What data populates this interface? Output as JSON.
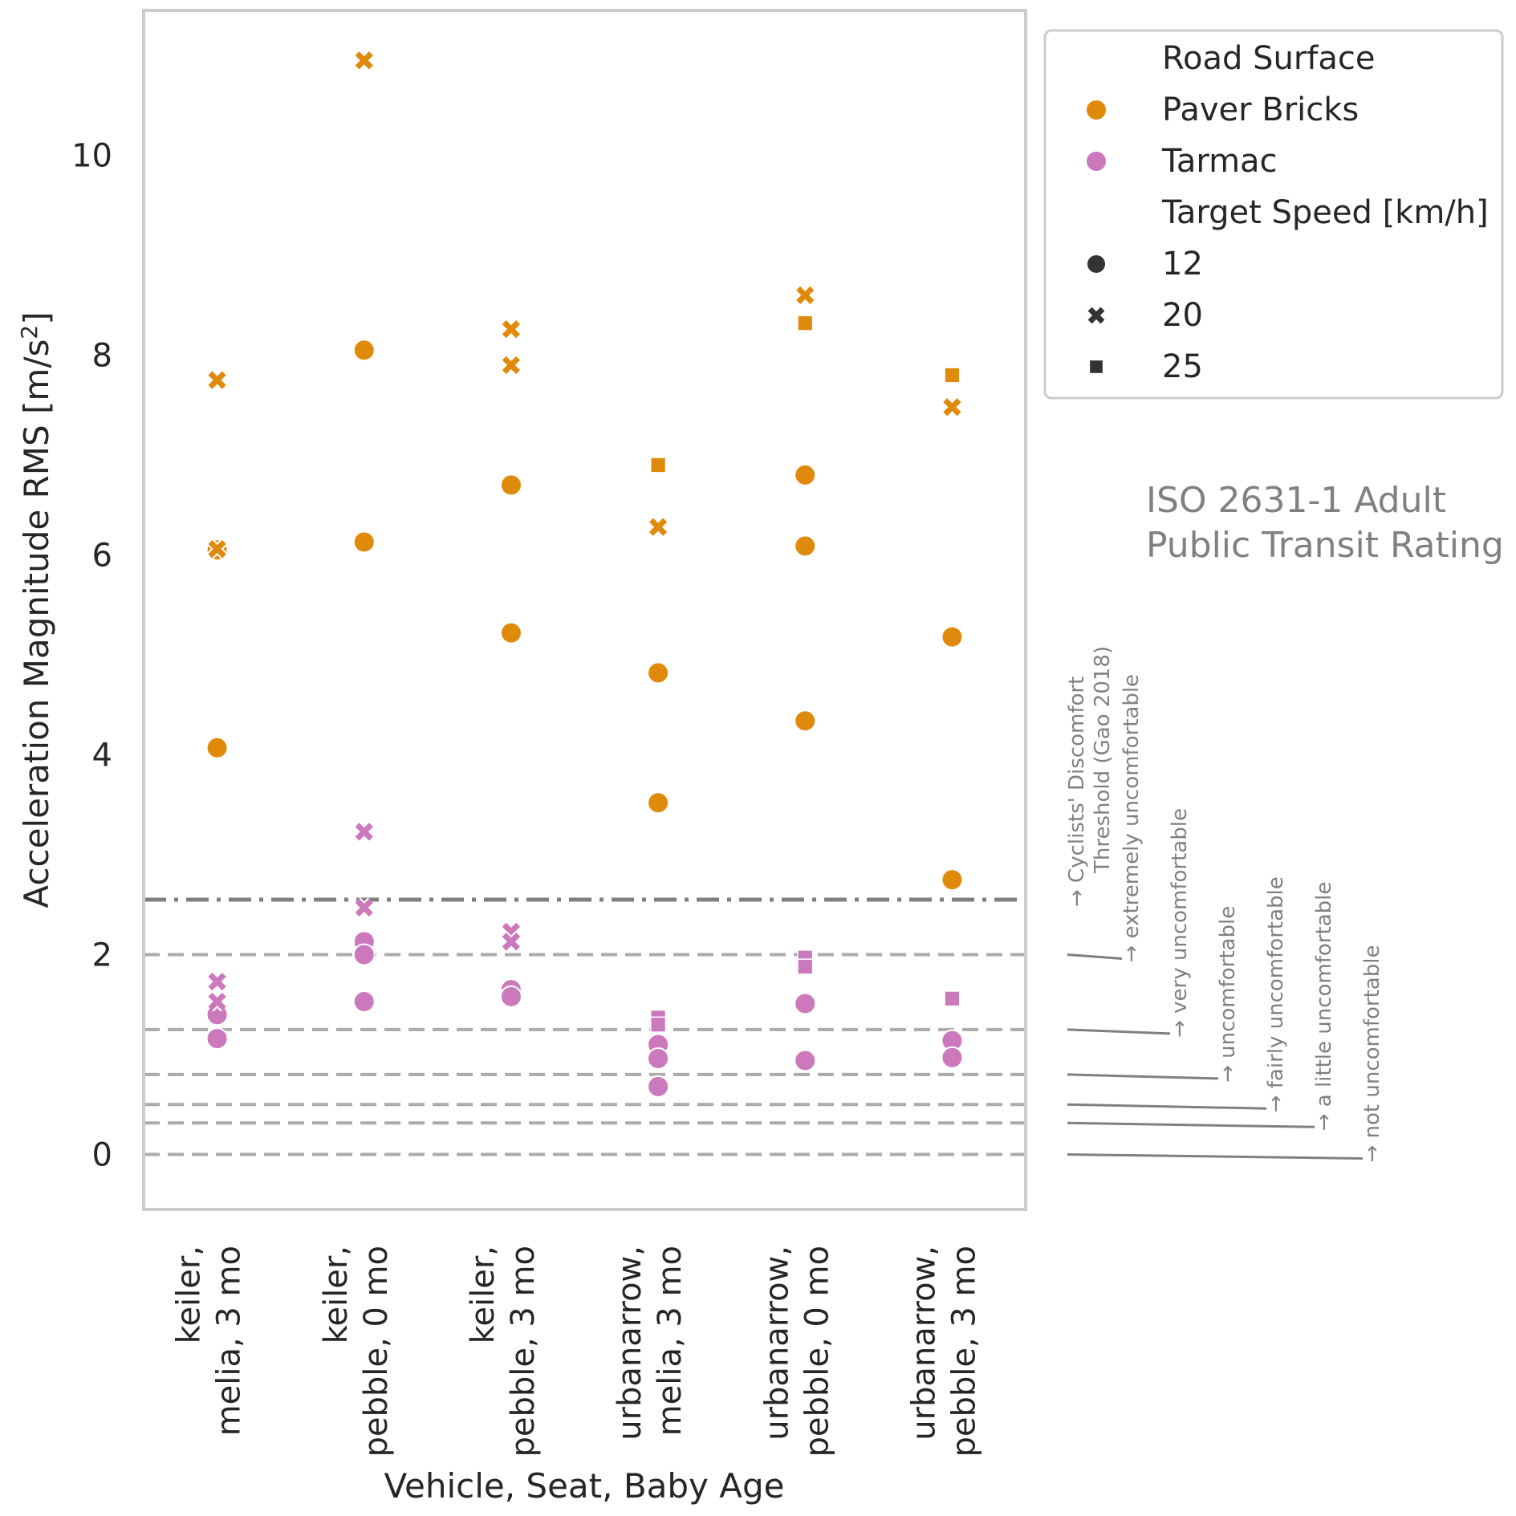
{
  "chart_data": {
    "type": "scatter",
    "xlabel": "Vehicle, Seat, Baby Age",
    "ylabel": "Acceleration Magnitude RMS [m/s²]",
    "ylim": [
      -0.55,
      11.45
    ],
    "yticks": [
      0,
      2,
      4,
      6,
      8,
      10
    ],
    "grid": false,
    "legend_position": "outside upper right",
    "categories": [
      [
        "keiler,",
        "melia, 3 mo"
      ],
      [
        "keiler,",
        "pebble, 0 mo"
      ],
      [
        "keiler,",
        "pebble, 3 mo"
      ],
      [
        "urbanarrow,",
        "melia, 3 mo"
      ],
      [
        "urbanarrow,",
        "pebble, 0 mo"
      ],
      [
        "urbanarrow,",
        "pebble, 3 mo"
      ]
    ],
    "colors": {
      "Paver Bricks": "#e08a0b",
      "Tarmac": "#cc78bc"
    },
    "legend": {
      "hue_title": "Road Surface",
      "hue_items": [
        "Paver Bricks",
        "Tarmac"
      ],
      "style_title": "Target Speed [km/h]",
      "style_items": [
        {
          "label": "12",
          "marker": "circle"
        },
        {
          "label": "20",
          "marker": "x"
        },
        {
          "label": "25",
          "marker": "square"
        }
      ]
    },
    "series": [
      {
        "surface": "Paver Bricks",
        "speed": "12",
        "marker": "circle",
        "points": [
          [
            0,
            6.05
          ],
          [
            0,
            4.07
          ],
          [
            1,
            8.05
          ],
          [
            1,
            6.13
          ],
          [
            2,
            6.7
          ],
          [
            2,
            5.22
          ],
          [
            3,
            4.82
          ],
          [
            3,
            3.52
          ],
          [
            4,
            6.8
          ],
          [
            4,
            6.09
          ],
          [
            4,
            4.34
          ],
          [
            5,
            5.18
          ],
          [
            5,
            2.75
          ]
        ]
      },
      {
        "surface": "Paver Bricks",
        "speed": "20",
        "marker": "x",
        "points": [
          [
            0,
            7.75
          ],
          [
            0,
            6.06
          ],
          [
            1,
            10.95
          ],
          [
            2,
            8.26
          ],
          [
            2,
            7.9
          ],
          [
            3,
            6.28
          ],
          [
            4,
            8.6
          ],
          [
            5,
            7.48
          ]
        ]
      },
      {
        "surface": "Paver Bricks",
        "speed": "25",
        "marker": "square",
        "points": [
          [
            3,
            6.9
          ],
          [
            4,
            8.32
          ],
          [
            5,
            7.8
          ]
        ]
      },
      {
        "surface": "Tarmac",
        "speed": "12",
        "marker": "circle",
        "points": [
          [
            0,
            1.4
          ],
          [
            0,
            1.16
          ],
          [
            1,
            2.13
          ],
          [
            1,
            2.0
          ],
          [
            1,
            1.53
          ],
          [
            2,
            1.65
          ],
          [
            2,
            1.58
          ],
          [
            3,
            1.1
          ],
          [
            3,
            0.96
          ],
          [
            3,
            0.68
          ],
          [
            4,
            1.51
          ],
          [
            4,
            0.94
          ],
          [
            5,
            1.14
          ],
          [
            5,
            0.97
          ]
        ]
      },
      {
        "surface": "Tarmac",
        "speed": "20",
        "marker": "x",
        "points": [
          [
            0,
            1.73
          ],
          [
            0,
            1.53
          ],
          [
            1,
            3.23
          ],
          [
            1,
            2.47
          ],
          [
            2,
            2.23
          ],
          [
            2,
            2.13
          ]
        ]
      },
      {
        "surface": "Tarmac",
        "speed": "25",
        "marker": "square",
        "points": [
          [
            3,
            1.37
          ],
          [
            3,
            1.3
          ],
          [
            4,
            1.97
          ],
          [
            4,
            1.88
          ],
          [
            5,
            1.56
          ]
        ]
      }
    ],
    "reference_lines": [
      {
        "value": 2.55,
        "style": "dashdot",
        "color": "#7f7f7f"
      },
      {
        "value": 2.0,
        "style": "dashed",
        "color": "#ababab"
      },
      {
        "value": 1.25,
        "style": "dashed",
        "color": "#ababab"
      },
      {
        "value": 0.8,
        "style": "dashed",
        "color": "#ababab"
      },
      {
        "value": 0.5,
        "style": "dashed",
        "color": "#ababab"
      },
      {
        "value": 0.315,
        "style": "dashed",
        "color": "#ababab"
      },
      {
        "value": 0.0,
        "style": "dashed",
        "color": "#ababab"
      }
    ],
    "annotation_title": [
      "ISO 2631-1 Adult",
      "Public Transit Rating"
    ],
    "annotations": [
      {
        "lines": [
          "→ Cyclists' Discomfort",
          "Threshold (Gao 2018)"
        ],
        "y": 2.55
      },
      {
        "lines": [
          "→ extremely uncomfortable"
        ],
        "y": 2.0
      },
      {
        "lines": [
          "→ very uncomfortable"
        ],
        "y": 1.25
      },
      {
        "lines": [
          "→ uncomfortable"
        ],
        "y": 0.8
      },
      {
        "lines": [
          "→ fairly uncomfortable"
        ],
        "y": 0.5
      },
      {
        "lines": [
          "→ a little uncomfortable"
        ],
        "y": 0.315
      },
      {
        "lines": [
          "→ not uncomfortable"
        ],
        "y": 0.0
      }
    ]
  }
}
